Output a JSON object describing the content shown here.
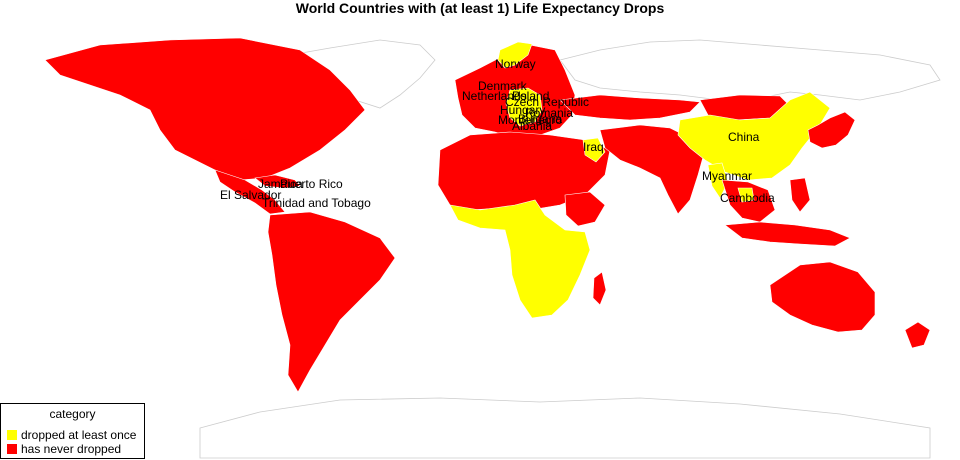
{
  "title": "World Countries with (at least 1) Life Expectancy Drops",
  "legend": {
    "title": "category",
    "items": [
      {
        "label": "dropped at least once",
        "color": "#ffff00"
      },
      {
        "label": "has never dropped",
        "color": "#ff0000"
      }
    ]
  },
  "colors": {
    "dropped": "#ffff00",
    "never_dropped": "#ff0000",
    "no_data": "#ffffff",
    "border": "#cccccc"
  },
  "labeled_countries": [
    "Norway",
    "Denmark",
    "Netherlands",
    "Poland",
    "Czech Republic",
    "Hungary",
    "Romania",
    "Bulgaria",
    "Montenegro",
    "Albania",
    "Iraq",
    "China",
    "Myanmar",
    "Cambodia",
    "Jamaica",
    "Puerto Rico",
    "El Salvador",
    "Trinidad and Tobago"
  ]
}
